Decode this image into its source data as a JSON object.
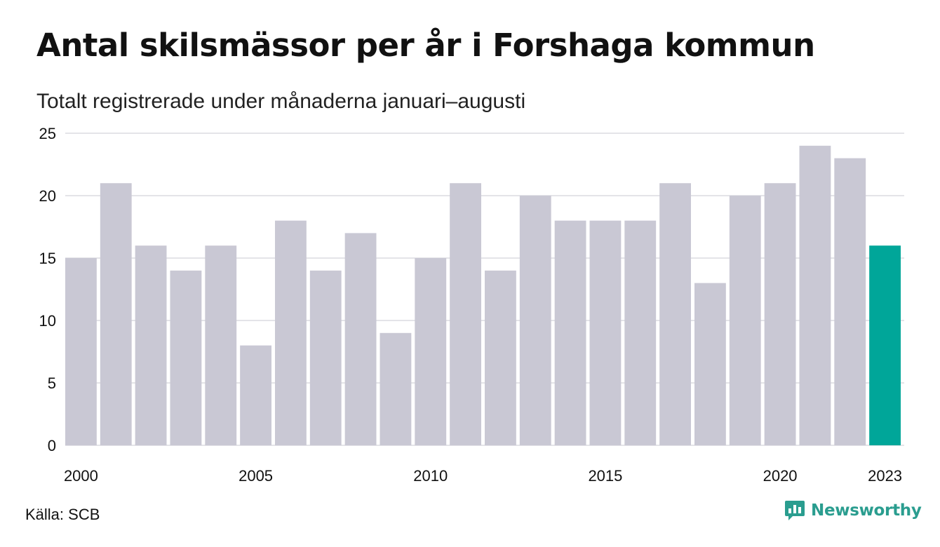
{
  "header": {
    "title": "Antal skilsmässor per år i Forshaga kommun",
    "subtitle": "Totalt registrerade under månaderna januari–augusti"
  },
  "footer": {
    "source": "Källa: SCB",
    "brand": "Newsworthy",
    "brand_icon": "bar-chart-speech-bubble-icon"
  },
  "colors": {
    "bar": "#c9c8d4",
    "highlight": "#00a699",
    "grid": "#e4e4e8",
    "brand": "#2a9d8f"
  },
  "chart_data": {
    "type": "bar",
    "title": "Antal skilsmässor per år i Forshaga kommun",
    "subtitle": "Totalt registrerade under månaderna januari–augusti",
    "xlabel": "",
    "ylabel": "",
    "categories": [
      "2000",
      "2001",
      "2002",
      "2003",
      "2004",
      "2005",
      "2006",
      "2007",
      "2008",
      "2009",
      "2010",
      "2011",
      "2012",
      "2013",
      "2014",
      "2015",
      "2016",
      "2017",
      "2018",
      "2019",
      "2020",
      "2021",
      "2022",
      "2023"
    ],
    "values": [
      15,
      21,
      16,
      14,
      16,
      8,
      18,
      14,
      17,
      9,
      15,
      21,
      14,
      20,
      18,
      18,
      18,
      21,
      13,
      20,
      21,
      24,
      23,
      16
    ],
    "highlight_category": "2023",
    "x_tick_labels": [
      "2000",
      "2005",
      "2010",
      "2015",
      "2020",
      "2023"
    ],
    "y_ticks": [
      0,
      5,
      10,
      15,
      20,
      25
    ],
    "ylim": [
      0,
      25
    ],
    "grid": "horizontal",
    "legend": "none"
  }
}
